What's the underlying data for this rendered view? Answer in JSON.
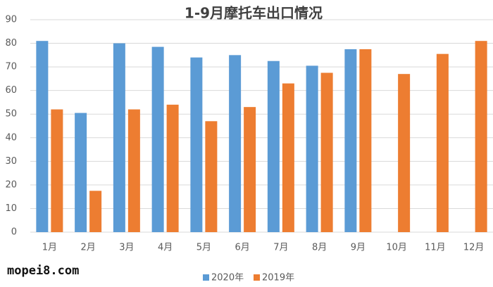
{
  "chart_data": {
    "type": "bar",
    "title": "1-9月摩托车出口情况",
    "categories": [
      "1月",
      "2月",
      "3月",
      "4月",
      "5月",
      "6月",
      "7月",
      "8月",
      "9月",
      "10月",
      "11月",
      "12月"
    ],
    "series": [
      {
        "name": "2020年",
        "color": "#5b9bd5",
        "values": [
          81,
          50.5,
          80,
          78.5,
          74,
          75,
          72.5,
          70.5,
          77.5,
          null,
          null,
          null
        ]
      },
      {
        "name": "2019年",
        "color": "#ed7d31",
        "values": [
          52,
          17.5,
          52,
          54,
          47,
          53,
          63,
          67.5,
          77.5,
          67,
          75.5,
          81
        ]
      }
    ],
    "ylim": [
      0,
      90
    ],
    "yticks": [
      0,
      10,
      20,
      30,
      40,
      50,
      60,
      70,
      80,
      90
    ],
    "grid": true,
    "legend": "bottom",
    "watermark": "mopei8.com"
  }
}
